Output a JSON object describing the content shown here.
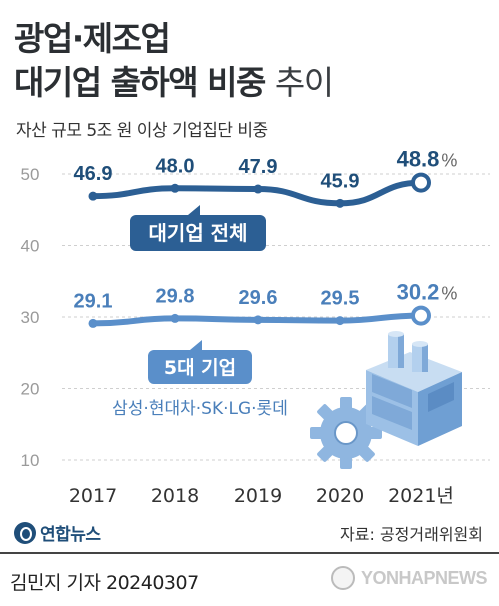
{
  "title_line1": "광업·제조업",
  "title_line2_bold": "대기업 출하액 비중",
  "title_line2_light": "추이",
  "subtitle": "자산 규모 5조 원 이상 기업집단 비중",
  "chart_data": {
    "type": "line",
    "title": "광업·제조업 대기업 출하액 비중 추이",
    "subtitle": "자산 규모 5조 원 이상 기업집단 비중",
    "categories": [
      "2017",
      "2018",
      "2019",
      "2020",
      "2021년"
    ],
    "ylim": [
      10,
      50
    ],
    "yticks": [
      "10",
      "20",
      "30",
      "40",
      "50"
    ],
    "grid": true,
    "series": [
      {
        "name": "대기업 전체",
        "values": [
          46.9,
          48.0,
          47.9,
          45.9,
          48.8
        ],
        "labels": [
          "46.9",
          "48.0",
          "47.9",
          "45.9",
          "48.8"
        ],
        "color": "#2c5f94"
      },
      {
        "name": "5대 기업",
        "values": [
          29.1,
          29.8,
          29.6,
          29.5,
          30.2
        ],
        "labels": [
          "29.1",
          "29.8",
          "29.6",
          "29.5",
          "30.2"
        ],
        "color": "#5a8fca"
      }
    ],
    "percent_sign": "%",
    "annotation": "삼성·현대차·SK·LG·롯데"
  },
  "colors": {
    "series1": "#2c5f94",
    "series2": "#5a8fca",
    "label1": "#1f4e79",
    "label2": "#4a7fba",
    "grid": "#cfcfcf",
    "tick": "#9a9a9a",
    "industry_icon": "#9cc0e6"
  },
  "icons": {
    "factory": "factory-icon",
    "gear": "gear-icon"
  },
  "source": "자료: 공정거래위원회",
  "logo_text": "연합뉴스",
  "reporter": "김민지 기자  20240307",
  "watermark": "YONHAPNEWS"
}
